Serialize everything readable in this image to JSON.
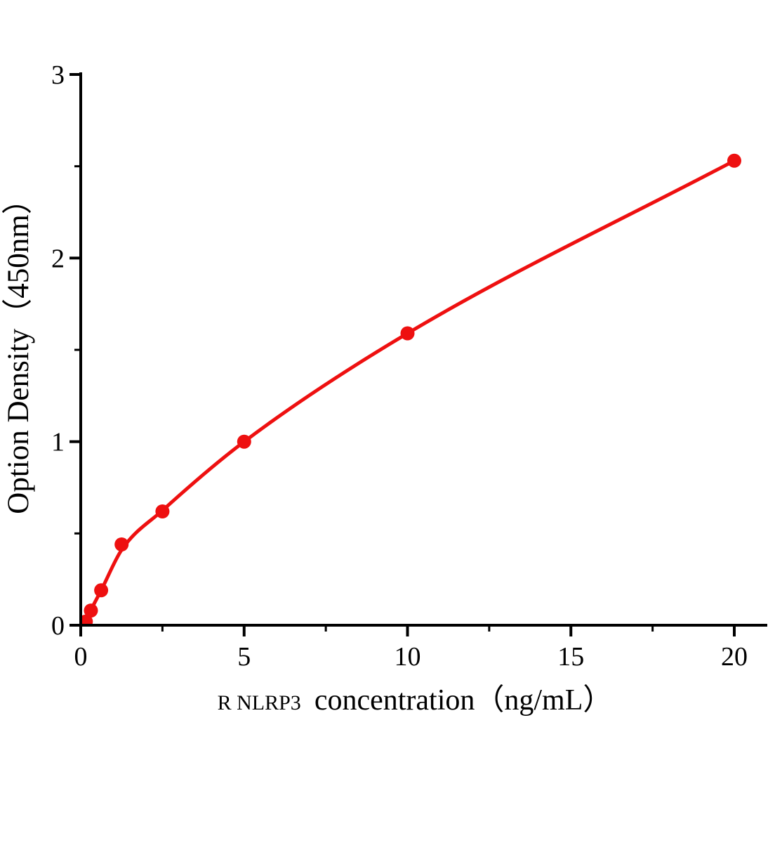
{
  "figure": {
    "background_color": "#ffffff",
    "axis_color": "#000000"
  },
  "chart_data": {
    "type": "scatter",
    "ylabel": "Option Density（450nm）",
    "xlabel_prefix": "R NLRP3",
    "xlabel_main": "concentration（ng/mL）",
    "x_axis": {
      "min": 0,
      "max": 20,
      "major_ticks": [
        0,
        5,
        10,
        15,
        20
      ],
      "minor_ticks": [
        2.5,
        7.5,
        12.5,
        17.5
      ]
    },
    "y_axis": {
      "min": 0,
      "max": 3,
      "major_ticks": [
        0,
        1,
        2,
        3
      ],
      "minor_ticks": [
        0.5,
        1.5,
        2.5
      ]
    },
    "grid": false,
    "legend": "none",
    "marker_color": "#ee1010",
    "line_color": "#ee1010",
    "points": [
      {
        "x": 0.156,
        "y": 0.02
      },
      {
        "x": 0.3125,
        "y": 0.08
      },
      {
        "x": 0.625,
        "y": 0.19
      },
      {
        "x": 1.25,
        "y": 0.44
      },
      {
        "x": 2.5,
        "y": 0.62
      },
      {
        "x": 5,
        "y": 1.0
      },
      {
        "x": 10,
        "y": 1.59
      },
      {
        "x": 20,
        "y": 2.53
      }
    ],
    "curve_anchors": [
      [
        0,
        0
      ],
      [
        0.156,
        0.035
      ],
      [
        0.3125,
        0.085
      ],
      [
        0.625,
        0.19
      ],
      [
        1.25,
        0.41
      ],
      [
        2.5,
        0.625
      ],
      [
        5,
        1.0
      ],
      [
        10,
        1.59
      ],
      [
        20,
        2.53
      ]
    ]
  }
}
